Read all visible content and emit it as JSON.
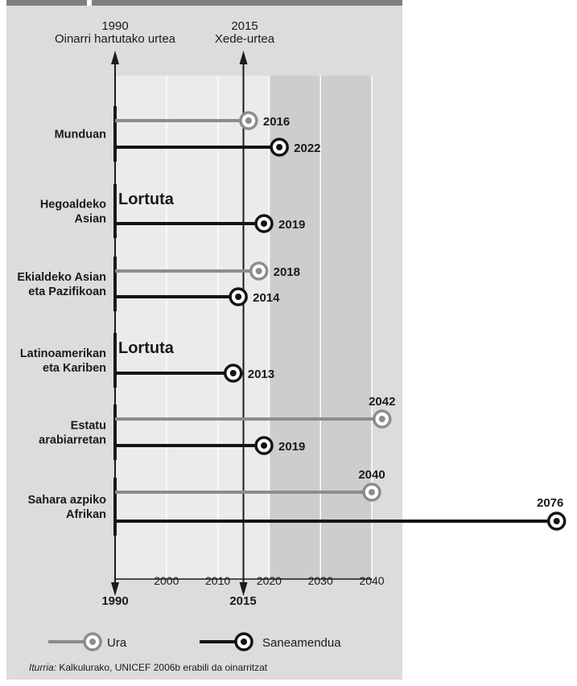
{
  "colors": {
    "panel_bg": "#dcdcdc",
    "top_bar": "#7f7f7f",
    "plot_light": "#ebebeb",
    "plot_dark": "#cdcdcd",
    "gridline": "#ffffff",
    "water": "#8c8c8c",
    "sanitation": "#141414",
    "text": "#1a1a1a"
  },
  "header": {
    "baseline_year": "1990",
    "baseline_label": "Oinarri hartutako urtea",
    "target_year": "2015",
    "target_label": "Xede-urtea"
  },
  "axis_bottom": {
    "start_label": "1990",
    "target_label": "2015"
  },
  "legend": {
    "water_label": "Ura",
    "sanitation_label": "Saneamendua"
  },
  "source": {
    "prefix": "Iturria:",
    "text": " Kalkulurako, UNICEF 2006b erabili da oinarritzat"
  },
  "chart_data": {
    "type": "line",
    "x_axis": {
      "min": 1990,
      "max": 2040,
      "ticks": [
        2000,
        2010,
        2020,
        2030,
        2040
      ],
      "shaded_from": 2020
    },
    "baseline_year": 1990,
    "target_year": 2015,
    "series_names": {
      "water": "Ura",
      "sanitation": "Saneamendua"
    },
    "regions": [
      {
        "name": [
          "Munduan"
        ],
        "water": 2016,
        "sanitation": 2022
      },
      {
        "name": [
          "Hegoaldeko",
          "Asian"
        ],
        "water": null,
        "water_text": "Lortuta",
        "sanitation": 2019
      },
      {
        "name": [
          "Ekialdeko Asian",
          "eta Pazifikoan"
        ],
        "water": 2018,
        "sanitation": 2014
      },
      {
        "name": [
          "Latinoamerikan",
          "eta Kariben"
        ],
        "water": null,
        "water_text": "Lortuta",
        "sanitation": 2013
      },
      {
        "name": [
          "Estatu",
          "arabiarretan"
        ],
        "water": 2042,
        "sanitation": 2019
      },
      {
        "name": [
          "Sahara azpiko",
          "Afrikan"
        ],
        "water": 2040,
        "sanitation": 2076
      }
    ]
  }
}
